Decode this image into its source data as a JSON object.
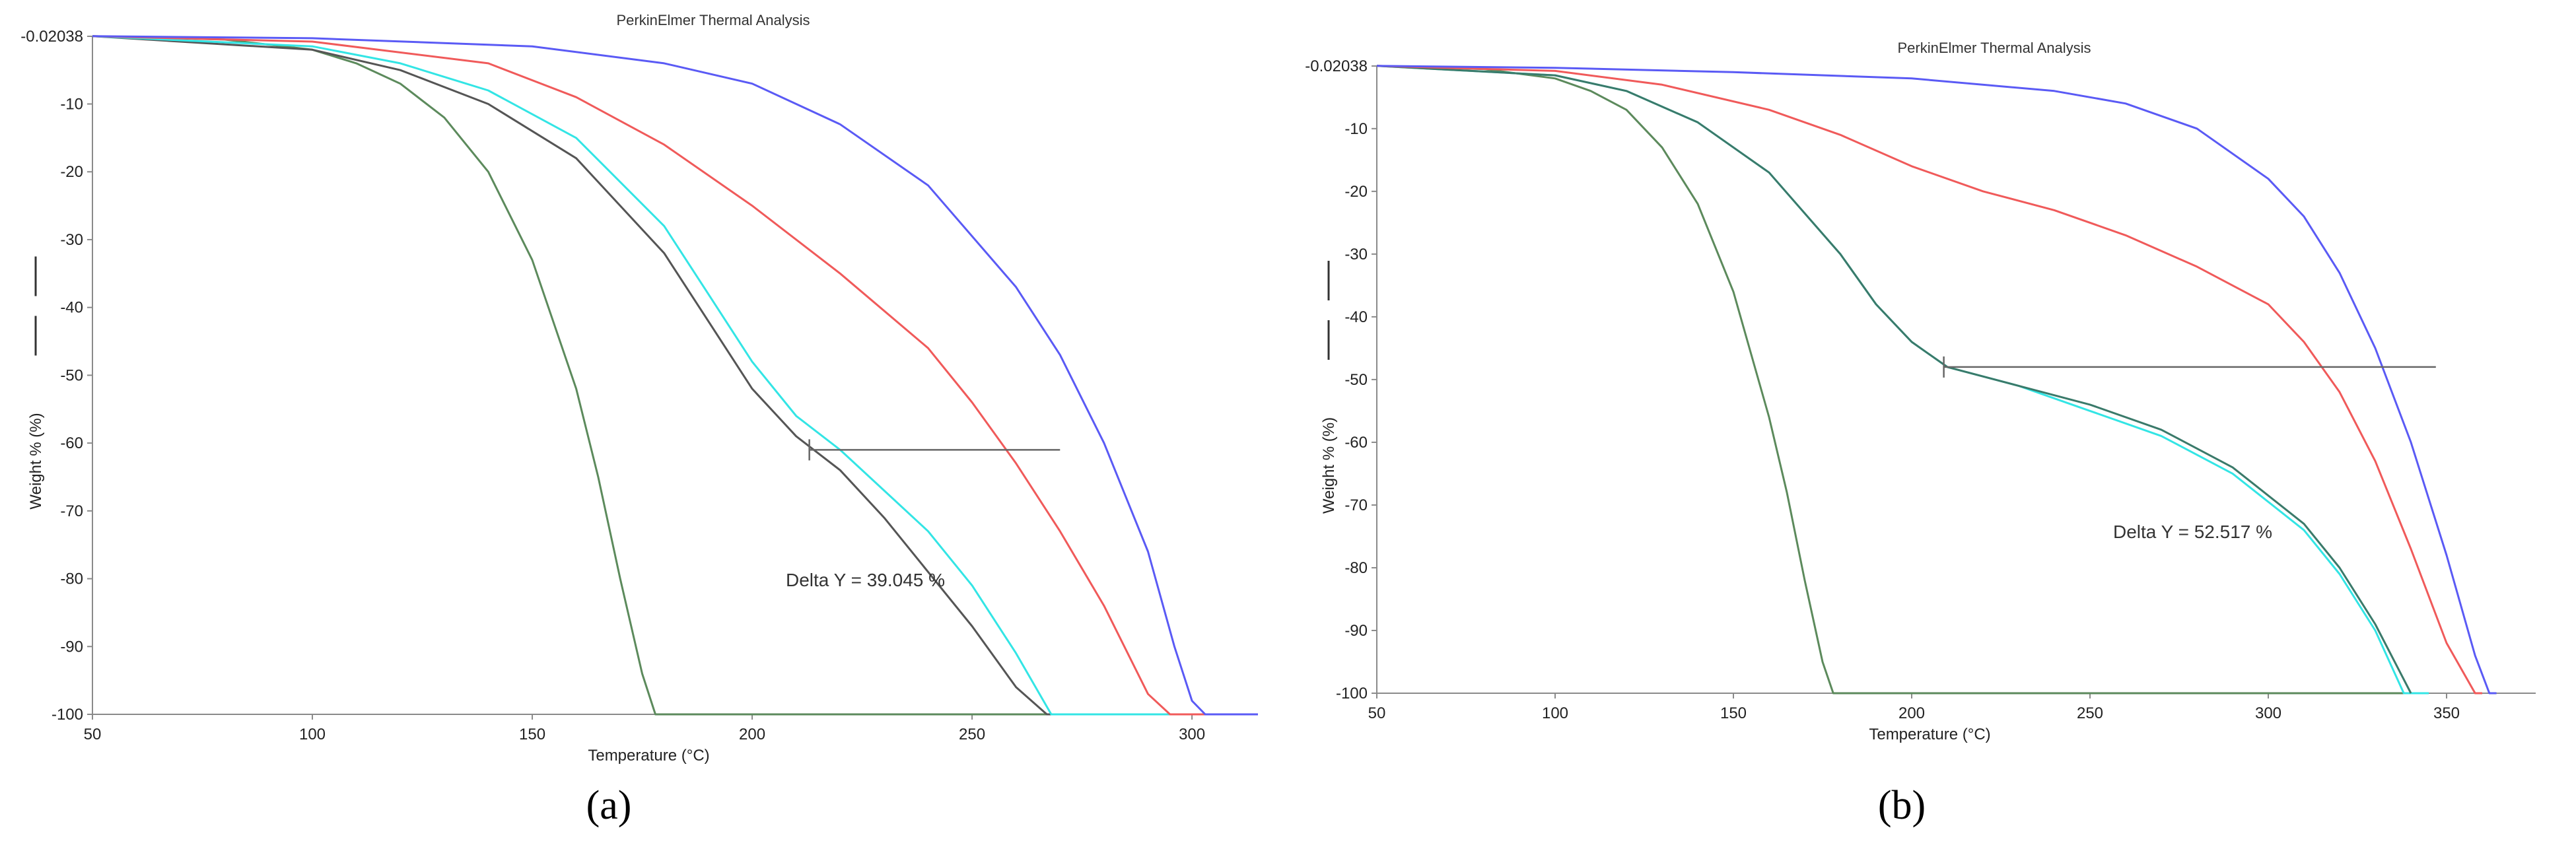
{
  "chart_data": [
    {
      "type": "line",
      "title": "PerkinElmer Thermal Analysis",
      "xlabel": "Temperature (°C)",
      "ylabel": "Weight % (%)",
      "xlim": [
        50,
        315
      ],
      "ylim": [
        -100,
        -0.02038
      ],
      "x_ticks": [
        "50",
        "100",
        "150",
        "200",
        "250",
        "300"
      ],
      "y_ticks": [
        "-0.02038",
        "-10",
        "-20",
        "-30",
        "-40",
        "-50",
        "-60",
        "-70",
        "-80",
        "-90",
        "-100"
      ],
      "grid": false,
      "annotation": "Delta Y = 39.045 %",
      "delta_marker": {
        "x_start": 213,
        "x_end": 270,
        "y": -61
      },
      "caption": "(a)",
      "series": [
        {
          "color": "#5c8a5c",
          "x": [
            50,
            80,
            100,
            110,
            120,
            130,
            140,
            150,
            160,
            165,
            170,
            175,
            178,
            180,
            200,
            250,
            315
          ],
          "y": [
            0,
            -0.5,
            -2,
            -4,
            -7,
            -12,
            -20,
            -33,
            -52,
            -65,
            -80,
            -94,
            -100,
            -100,
            -100,
            -100,
            -100
          ]
        },
        {
          "color": "#555555",
          "x": [
            50,
            100,
            120,
            140,
            160,
            180,
            190,
            200,
            210,
            220,
            230,
            240,
            250,
            260,
            267,
            270,
            315
          ],
          "y": [
            0,
            -2,
            -5,
            -10,
            -18,
            -32,
            -42,
            -52,
            -59,
            -64,
            -71,
            -79,
            -87,
            -96,
            -100,
            -100,
            -100
          ]
        },
        {
          "color": "#33e5e5",
          "x": [
            50,
            100,
            120,
            140,
            160,
            180,
            190,
            200,
            210,
            220,
            230,
            240,
            250,
            260,
            268,
            272,
            315
          ],
          "y": [
            0,
            -1.5,
            -4,
            -8,
            -15,
            -28,
            -38,
            -48,
            -56,
            -61,
            -67,
            -73,
            -81,
            -91,
            -100,
            -100,
            -100
          ]
        },
        {
          "color": "#f05a5a",
          "x": [
            50,
            100,
            140,
            160,
            180,
            200,
            220,
            240,
            250,
            260,
            270,
            280,
            290,
            295,
            315
          ],
          "y": [
            0,
            -0.8,
            -4,
            -9,
            -16,
            -25,
            -35,
            -46,
            -54,
            -63,
            -73,
            -84,
            -97,
            -100,
            -100
          ]
        },
        {
          "color": "#5a5af5",
          "x": [
            50,
            100,
            150,
            180,
            200,
            220,
            240,
            260,
            270,
            280,
            290,
            296,
            300,
            303,
            305,
            315
          ],
          "y": [
            0,
            -0.3,
            -1.5,
            -4,
            -7,
            -13,
            -22,
            -37,
            -47,
            -60,
            -76,
            -90,
            -98,
            -100,
            -100,
            -100
          ]
        }
      ]
    },
    {
      "type": "line",
      "title": "PerkinElmer Thermal Analysis",
      "xlabel": "Temperature (°C)",
      "ylabel": "Weight % (%)",
      "xlim": [
        50,
        375
      ],
      "ylim": [
        -100,
        -0.02038
      ],
      "x_ticks": [
        "50",
        "100",
        "150",
        "200",
        "250",
        "300",
        "350"
      ],
      "y_ticks": [
        "-0.02038",
        "-10",
        "-20",
        "-30",
        "-40",
        "-50",
        "-60",
        "-70",
        "-80",
        "-90",
        "-100"
      ],
      "grid": false,
      "annotation": "Delta Y = 52.517 %",
      "delta_marker": {
        "x_start": 209,
        "x_end": 347,
        "y": -48
      },
      "caption": "(b)",
      "series": [
        {
          "color": "#5c8a5c",
          "x": [
            50,
            80,
            100,
            110,
            120,
            130,
            140,
            150,
            160,
            165,
            170,
            175,
            178,
            180,
            250,
            340
          ],
          "y": [
            0,
            -0.5,
            -2,
            -4,
            -7,
            -13,
            -22,
            -36,
            -56,
            -68,
            -82,
            -95,
            -100,
            -100,
            -100,
            -100
          ]
        },
        {
          "color": "#33e5e5",
          "x": [
            50,
            100,
            120,
            140,
            160,
            180,
            190,
            200,
            210,
            230,
            250,
            270,
            290,
            310,
            320,
            330,
            338,
            345
          ],
          "y": [
            0,
            -1.5,
            -4,
            -9,
            -17,
            -30,
            -38,
            -44,
            -48,
            -51,
            -55,
            -59,
            -65,
            -74,
            -81,
            -90,
            -100,
            -100
          ]
        },
        {
          "color": "#3a7a6a",
          "x": [
            50,
            100,
            120,
            140,
            160,
            180,
            190,
            200,
            210,
            230,
            250,
            270,
            290,
            310,
            320,
            330,
            340
          ],
          "y": [
            0,
            -1.5,
            -4,
            -9,
            -17,
            -30,
            -38,
            -44,
            -48,
            -51,
            -54,
            -58,
            -64,
            -73,
            -80,
            -89,
            -100
          ]
        },
        {
          "color": "#f05a5a",
          "x": [
            50,
            100,
            130,
            160,
            180,
            200,
            220,
            240,
            260,
            280,
            300,
            310,
            320,
            330,
            340,
            350,
            358,
            360
          ],
          "y": [
            0,
            -0.8,
            -3,
            -7,
            -11,
            -16,
            -20,
            -23,
            -27,
            -32,
            -38,
            -44,
            -52,
            -63,
            -77,
            -92,
            -100,
            -100
          ]
        },
        {
          "color": "#5a5af5",
          "x": [
            50,
            100,
            150,
            200,
            240,
            260,
            280,
            300,
            310,
            320,
            330,
            340,
            350,
            358,
            362,
            364
          ],
          "y": [
            0,
            -0.3,
            -1,
            -2,
            -4,
            -6,
            -10,
            -18,
            -24,
            -33,
            -45,
            -60,
            -78,
            -94,
            -100,
            -100
          ]
        }
      ]
    }
  ]
}
